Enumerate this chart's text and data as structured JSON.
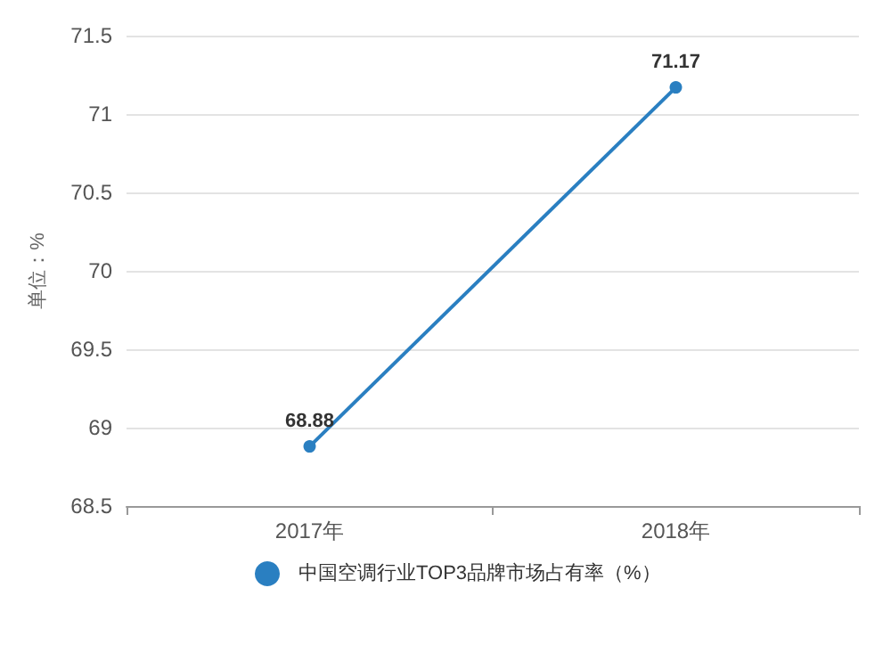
{
  "chart_data": {
    "type": "line",
    "ylabel": "单位：%",
    "categories": [
      "2017年",
      "2018年"
    ],
    "series": [
      {
        "name": "中国空调行业TOP3品牌市场占有率（%）",
        "color": "#2a7fc1",
        "values": [
          68.88,
          71.17
        ]
      }
    ],
    "ylim": [
      68.5,
      71.5
    ],
    "yticks": [
      68.5,
      69,
      69.5,
      70,
      70.5,
      71,
      71.5
    ],
    "grid": "y",
    "legend": "bottom",
    "marker": "circle",
    "data_labels": true
  }
}
